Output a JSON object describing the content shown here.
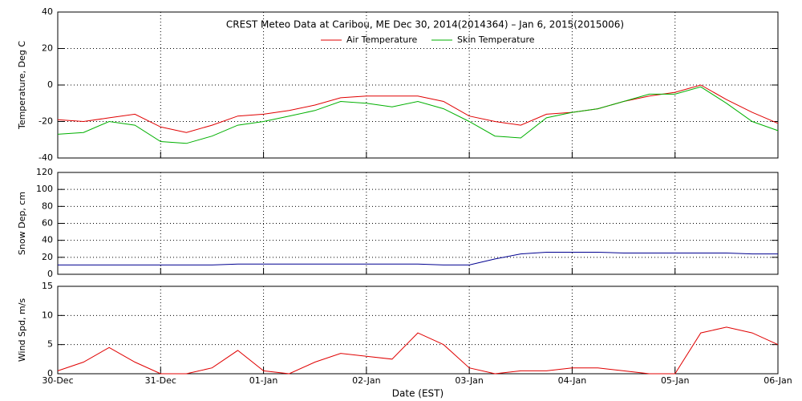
{
  "chart_data": [
    {
      "type": "line",
      "title": "CREST Meteo Data at Caribou, ME   Dec 30, 2014(2014364) – Jan  6, 2015(2015006)",
      "ylabel": "Temperature, Deg C",
      "ylim": [
        -40,
        40
      ],
      "yticks": [
        -40,
        -20,
        0,
        20,
        40
      ],
      "xlim": [
        0,
        7
      ],
      "xticks": [
        0,
        1,
        2,
        3,
        4,
        5,
        6,
        7
      ],
      "grid": true,
      "x": [
        0,
        0.25,
        0.5,
        0.75,
        1,
        1.25,
        1.5,
        1.75,
        2,
        2.25,
        2.5,
        2.75,
        3,
        3.25,
        3.5,
        3.75,
        4,
        4.25,
        4.5,
        4.75,
        5,
        5.25,
        5.5,
        5.75,
        6,
        6.25,
        6.5,
        6.75,
        7
      ],
      "series": [
        {
          "name": "Air Temperature",
          "color": "#e00000",
          "values": [
            -19,
            -20,
            -18,
            -16,
            -23,
            -26,
            -22,
            -17,
            -16,
            -14,
            -11,
            -7,
            -6,
            -6,
            -6,
            -9,
            -17,
            -20,
            -22,
            -16,
            -15,
            -13,
            -9,
            -6,
            -4,
            0,
            -8,
            -15,
            -21
          ]
        },
        {
          "name": "Skin Temperature",
          "color": "#00b000",
          "values": [
            -27,
            -26,
            -20,
            -22,
            -31,
            -32,
            -28,
            -22,
            -20,
            -17,
            -14,
            -9,
            -10,
            -12,
            -9,
            -13,
            -20,
            -28,
            -29,
            -18,
            -15,
            -13,
            -9,
            -5,
            -5,
            -1,
            -10,
            -20,
            -25
          ]
        }
      ]
    },
    {
      "type": "line",
      "ylabel": "Snow Dep, cm",
      "ylim": [
        0,
        120
      ],
      "yticks": [
        0,
        20,
        40,
        60,
        80,
        100,
        120
      ],
      "xlim": [
        0,
        7
      ],
      "xticks": [
        0,
        1,
        2,
        3,
        4,
        5,
        6,
        7
      ],
      "grid": true,
      "x": [
        0,
        0.25,
        0.5,
        0.75,
        1,
        1.25,
        1.5,
        1.75,
        2,
        2.25,
        2.5,
        2.75,
        3,
        3.25,
        3.5,
        3.75,
        4,
        4.25,
        4.5,
        4.75,
        5,
        5.25,
        5.5,
        5.75,
        6,
        6.25,
        6.5,
        6.75,
        7
      ],
      "series": [
        {
          "color": "#000090",
          "values": [
            11,
            11,
            11,
            11,
            11,
            11,
            11,
            12,
            12,
            12,
            12,
            12,
            12,
            12,
            12,
            11,
            11,
            18,
            24,
            26,
            26,
            26,
            25,
            25,
            25,
            25,
            25,
            24,
            24
          ]
        }
      ]
    },
    {
      "type": "line",
      "ylabel": "Wind Spd, m/s",
      "xlabel": "Date (EST)",
      "ylim": [
        0,
        15
      ],
      "yticks": [
        0,
        5,
        10,
        15
      ],
      "xlim": [
        0,
        7
      ],
      "grid": true,
      "xticks": [
        {
          "value": 0,
          "label": "30-Dec"
        },
        {
          "value": 1,
          "label": "31-Dec"
        },
        {
          "value": 2,
          "label": "01-Jan"
        },
        {
          "value": 3,
          "label": "02-Jan"
        },
        {
          "value": 4,
          "label": "03-Jan"
        },
        {
          "value": 5,
          "label": "04-Jan"
        },
        {
          "value": 6,
          "label": "05-Jan"
        },
        {
          "value": 7,
          "label": "06-Jan"
        }
      ],
      "x": [
        0,
        0.25,
        0.5,
        0.75,
        1,
        1.25,
        1.5,
        1.75,
        2,
        2.25,
        2.5,
        2.75,
        3,
        3.25,
        3.5,
        3.75,
        4,
        4.25,
        4.5,
        4.75,
        5,
        5.25,
        5.5,
        5.75,
        6,
        6.25,
        6.5,
        6.75,
        7
      ],
      "series": [
        {
          "color": "#e00000",
          "values": [
            0.5,
            2,
            4.5,
            2,
            0,
            0,
            1,
            4,
            0.5,
            0,
            2,
            3.5,
            3,
            2.5,
            7,
            5,
            1,
            0,
            0.5,
            0.5,
            1,
            1,
            0.5,
            0,
            0,
            7,
            8,
            7,
            5
          ]
        }
      ]
    }
  ]
}
